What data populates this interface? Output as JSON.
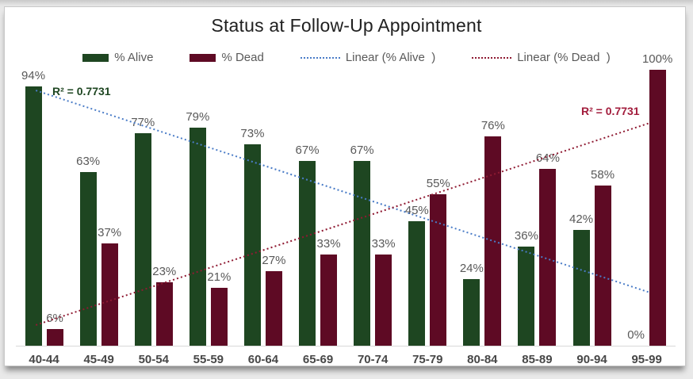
{
  "window": {
    "background_color": "#e9e9e9",
    "card_background_color": "#ffffff",
    "card_border_color": "#c9c9c9"
  },
  "chart_data": {
    "type": "bar",
    "title": "Status at Follow-Up Appointment",
    "xlabel": "",
    "ylabel": "",
    "value_suffix": "%",
    "ylim": [
      0,
      100
    ],
    "grid": false,
    "legend_position": "top",
    "axis_line_color": "#d9d9d9",
    "label_color": "#595959",
    "xlabel_color": "#474747",
    "categories": [
      "40-44",
      "45-49",
      "50-54",
      "55-59",
      "60-64",
      "65-69",
      "70-74",
      "75-79",
      "80-84",
      "85-89",
      "90-94",
      "95-99"
    ],
    "series": [
      {
        "name": "% Alive",
        "color": "#1E4621",
        "values": [
          94,
          63,
          77,
          79,
          73,
          67,
          67,
          45,
          24,
          36,
          42,
          0
        ]
      },
      {
        "name": "% Dead",
        "color": "#5E0A24",
        "values": [
          6,
          37,
          23,
          21,
          27,
          33,
          33,
          55,
          76,
          64,
          58,
          100
        ]
      }
    ],
    "trendlines": [
      {
        "name": "Linear (% Alive  )",
        "series": "% Alive",
        "style": "dotted",
        "color": "#4A7CC7",
        "r_squared_label": "R² = 0.7731",
        "r_squared_color": "#1E4621"
      },
      {
        "name": "Linear (% Dead  )",
        "series": "% Dead",
        "style": "dotted",
        "color": "#8F1A32",
        "r_squared_label": "R² = 0.7731",
        "r_squared_color": "#A21C3C"
      }
    ]
  }
}
